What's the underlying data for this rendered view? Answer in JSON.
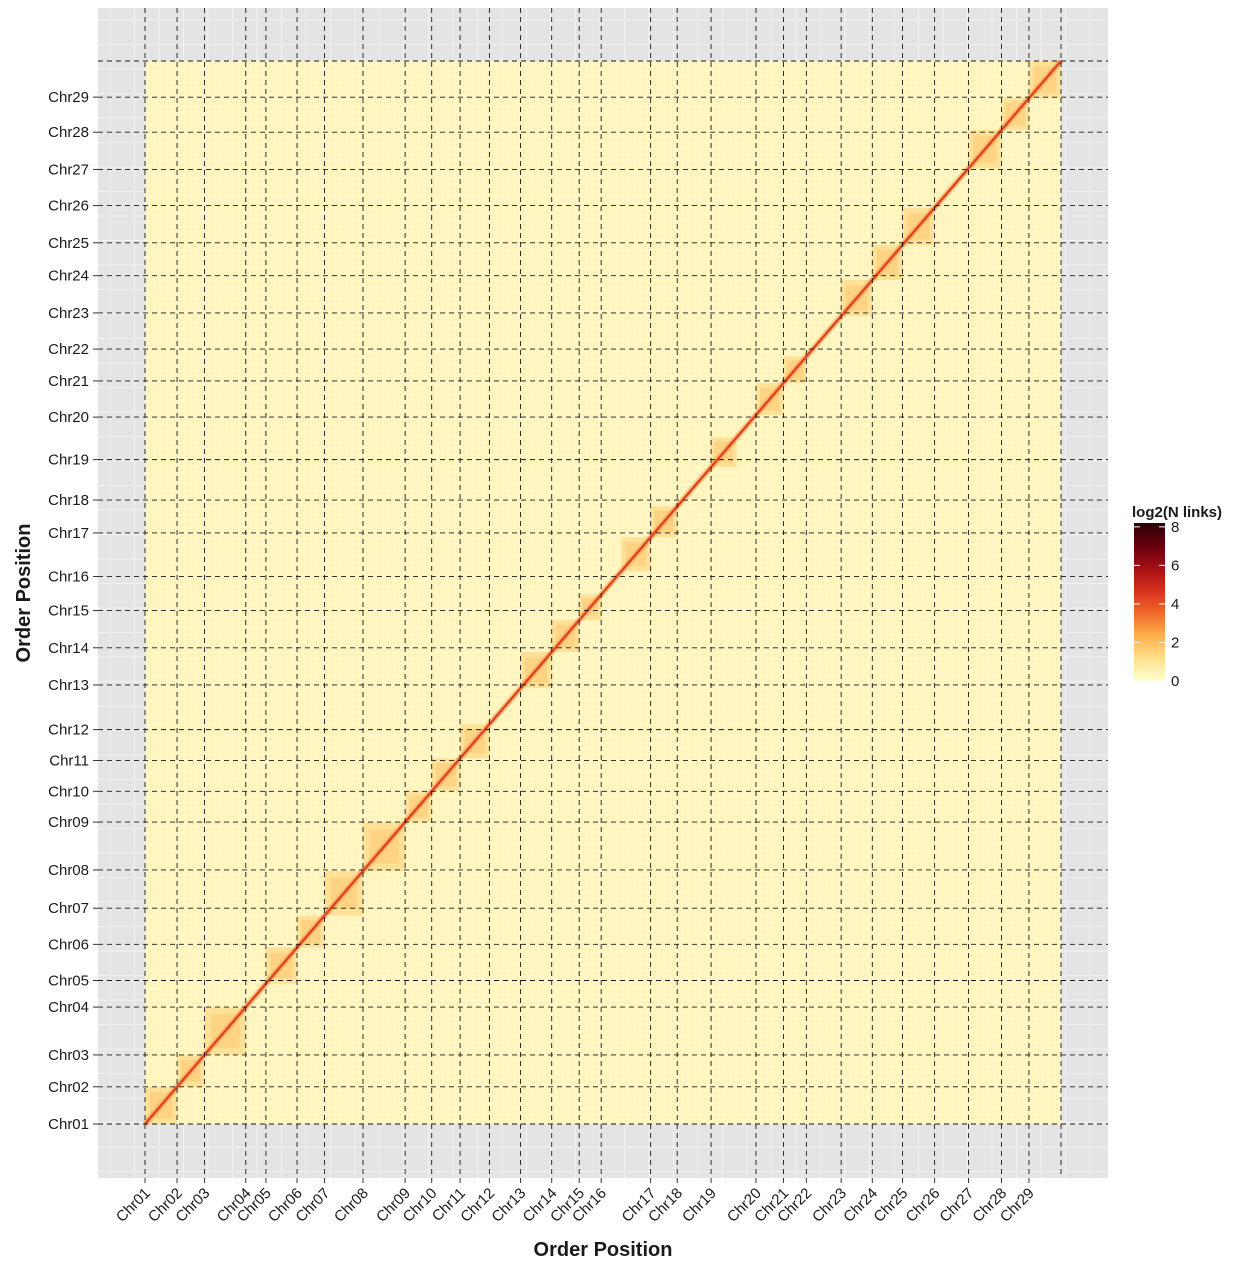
{
  "chart_data": {
    "type": "heatmap",
    "title": "",
    "xlabel": "Order Position",
    "ylabel": "Order Position",
    "chromosomes": [
      "Chr01",
      "Chr02",
      "Chr03",
      "Chr04",
      "Chr05",
      "Chr06",
      "Chr07",
      "Chr08",
      "Chr09",
      "Chr10",
      "Chr11",
      "Chr12",
      "Chr13",
      "Chr14",
      "Chr15",
      "Chr16",
      "Chr17",
      "Chr18",
      "Chr19",
      "Chr20",
      "Chr21",
      "Chr22",
      "Chr23",
      "Chr24",
      "Chr25",
      "Chr26",
      "Chr27",
      "Chr28",
      "Chr29"
    ],
    "x_breaks": [
      0.0,
      3.5,
      6.5,
      11.0,
      13.2,
      16.6,
      19.6,
      23.8,
      28.4,
      31.3,
      34.4,
      37.6,
      41.0,
      44.4,
      47.4,
      49.8,
      55.2,
      58.1,
      61.8,
      66.7,
      69.7,
      72.2,
      76.0,
      79.4,
      82.7,
      86.2,
      89.9,
      93.5,
      96.5,
      100.0
    ],
    "y_breaks": [
      0.0,
      3.5,
      6.5,
      11.0,
      13.5,
      16.9,
      20.3,
      23.9,
      28.4,
      31.3,
      34.2,
      37.1,
      41.3,
      44.8,
      48.3,
      51.5,
      55.6,
      58.7,
      62.5,
      66.5,
      69.9,
      72.9,
      76.3,
      79.8,
      82.9,
      86.4,
      89.8,
      93.3,
      96.6,
      100.0
    ],
    "xlim": [
      0,
      100
    ],
    "ylim": [
      0,
      100
    ],
    "diagonal_boxes": [
      {
        "x0": 0.0,
        "x1": 3.5
      },
      {
        "x0": 3.5,
        "x1": 6.5
      },
      {
        "x0": 6.5,
        "x1": 11.0
      },
      {
        "x0": 13.2,
        "x1": 16.6
      },
      {
        "x0": 16.6,
        "x1": 19.6
      },
      {
        "x0": 19.6,
        "x1": 23.8
      },
      {
        "x0": 23.8,
        "x1": 28.4
      },
      {
        "x0": 28.4,
        "x1": 31.3
      },
      {
        "x0": 31.3,
        "x1": 34.4
      },
      {
        "x0": 34.4,
        "x1": 37.6
      },
      {
        "x0": 41.0,
        "x1": 44.4
      },
      {
        "x0": 44.4,
        "x1": 47.4
      },
      {
        "x0": 47.4,
        "x1": 49.8
      },
      {
        "x0": 52.0,
        "x1": 55.2
      },
      {
        "x0": 55.2,
        "x1": 58.1
      },
      {
        "x0": 61.8,
        "x1": 64.6
      },
      {
        "x0": 66.7,
        "x1": 69.7
      },
      {
        "x0": 69.7,
        "x1": 72.2
      },
      {
        "x0": 76.0,
        "x1": 79.4
      },
      {
        "x0": 79.4,
        "x1": 82.7
      },
      {
        "x0": 82.7,
        "x1": 86.2
      },
      {
        "x0": 89.9,
        "x1": 93.5
      },
      {
        "x0": 93.5,
        "x1": 96.5
      },
      {
        "x0": 96.5,
        "x1": 100.0
      }
    ],
    "legend": {
      "title": "log2(N links)",
      "ticks": [
        0,
        2,
        4,
        6,
        8
      ],
      "range": [
        0,
        8.2
      ],
      "colors": [
        "#ffffd4",
        "#ffe08c",
        "#fdb04b",
        "#f26a2a",
        "#d7301f",
        "#a50f15",
        "#67000d",
        "#2b0004"
      ],
      "placement": "right"
    },
    "grid": true,
    "colors": {
      "panel_background": "#e4e4e4",
      "heatmap_background": "#fff6c2",
      "diagonal": "#e0431d",
      "gridline": "#1a1a1a"
    }
  }
}
